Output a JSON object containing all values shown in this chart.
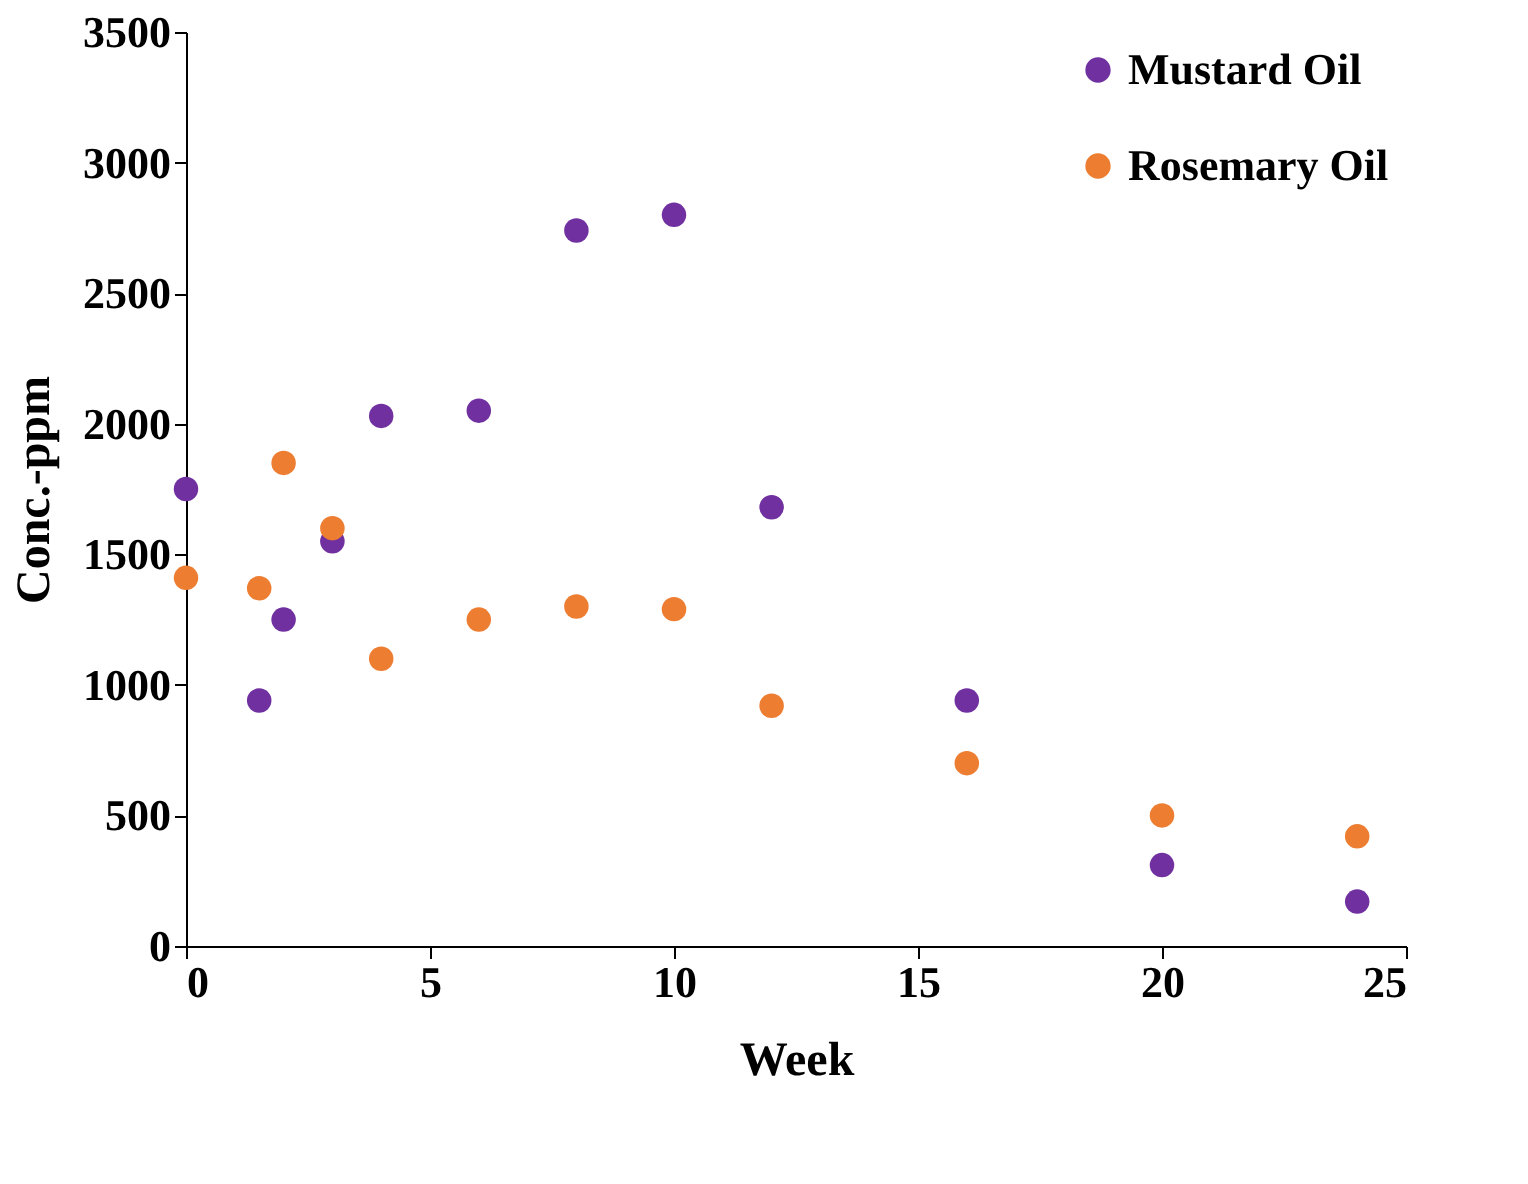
{
  "chart_data": {
    "type": "scatter",
    "xlabel": "Week",
    "ylabel": "Conc.-ppm",
    "x": [
      0,
      1.5,
      2,
      3,
      4,
      6,
      8,
      10,
      12,
      16,
      20,
      24
    ],
    "series": [
      {
        "name": "Mustard Oil",
        "color": "#7030a0",
        "values": [
          1750,
          940,
          1250,
          1550,
          2030,
          2050,
          2740,
          2800,
          1680,
          940,
          310,
          170
        ]
      },
      {
        "name": "Rosemary Oil",
        "color": "#ed7d31",
        "values": [
          1410,
          1370,
          1850,
          1600,
          1100,
          1250,
          1300,
          1290,
          920,
          700,
          500,
          420
        ]
      }
    ],
    "xlim": [
      0,
      25
    ],
    "xticks": [
      0,
      5,
      10,
      15,
      20,
      25
    ],
    "ylim": [
      0,
      3500
    ],
    "yticks": [
      0,
      500,
      1000,
      1500,
      2000,
      2500,
      3000,
      3500
    ],
    "grid": false,
    "legend": "top right",
    "marker": "circle"
  }
}
